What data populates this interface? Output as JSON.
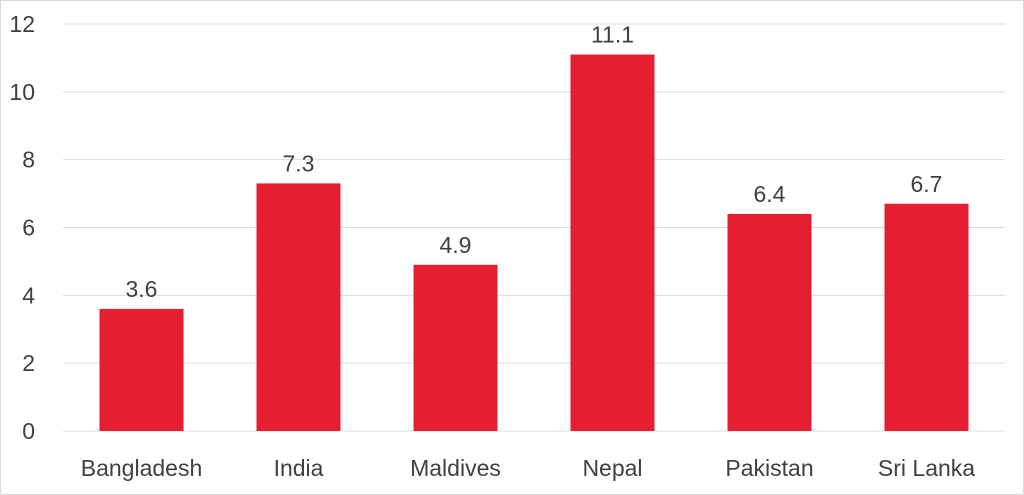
{
  "chart_data": {
    "type": "bar",
    "categories": [
      "Bangladesh",
      "India",
      "Maldives",
      "Nepal",
      "Pakistan",
      "Sri Lanka"
    ],
    "values": [
      3.6,
      7.3,
      4.9,
      11.1,
      6.4,
      6.7
    ],
    "data_labels": [
      "3.6",
      "7.3",
      "4.9",
      "11.1",
      "6.4",
      "6.7"
    ],
    "yticks": [
      "0",
      "2",
      "4",
      "6",
      "8",
      "10",
      "12"
    ],
    "ylim": [
      0,
      12
    ],
    "grid": true,
    "legend": "none",
    "bar_color": "#e61e32",
    "title": "",
    "xlabel": "",
    "ylabel": ""
  }
}
